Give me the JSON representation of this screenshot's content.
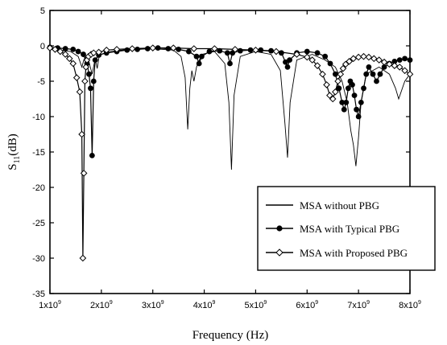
{
  "chart_data": {
    "type": "line",
    "xlabel": "Frequency (Hz)",
    "ylabel": "S11(dB)",
    "ylabel_main": "S",
    "ylabel_sub": "11",
    "ylabel_unit": "(dB)",
    "xlim": [
      1000000000,
      8000000000
    ],
    "ylim": [
      -35,
      5
    ],
    "x_ticks": [
      {
        "mant": "1x10",
        "exp": "9"
      },
      {
        "mant": "2x10",
        "exp": "9"
      },
      {
        "mant": "3x10",
        "exp": "9"
      },
      {
        "mant": "4x10",
        "exp": "9"
      },
      {
        "mant": "5x10",
        "exp": "9"
      },
      {
        "mant": "6x10",
        "exp": "9"
      },
      {
        "mant": "7x10",
        "exp": "9"
      },
      {
        "mant": "8x10",
        "exp": "9"
      }
    ],
    "y_ticks": [
      "5",
      "0",
      "-5",
      "-10",
      "-15",
      "-20",
      "-25",
      "-30",
      "-35"
    ],
    "legend_position": "bottom-right",
    "series": [
      {
        "name": "MSA without PBG",
        "marker": "none",
        "x": [
          1.0,
          1.2,
          1.4,
          1.55,
          1.62,
          1.66,
          1.7,
          1.75,
          1.82,
          1.88,
          1.92,
          1.96,
          2.1,
          2.5,
          3.0,
          3.4,
          3.55,
          3.63,
          3.68,
          3.72,
          3.76,
          3.8,
          3.85,
          3.95,
          4.2,
          4.4,
          4.48,
          4.53,
          4.58,
          4.7,
          5.0,
          5.3,
          5.48,
          5.57,
          5.62,
          5.67,
          5.8,
          6.1,
          6.35,
          6.55,
          6.68,
          6.78,
          6.85,
          6.9,
          6.95,
          7.0,
          7.05,
          7.15,
          7.4,
          7.6,
          7.72,
          7.78,
          7.9,
          8.0
        ],
        "y": [
          -0.5,
          -0.6,
          -0.8,
          -1.5,
          -3.0,
          -2.0,
          -1.5,
          -2.0,
          -4.0,
          -1.8,
          -3.2,
          -1.3,
          -0.9,
          -0.5,
          -0.4,
          -0.6,
          -1.5,
          -4.5,
          -11.8,
          -6.0,
          -3.5,
          -5.0,
          -3.0,
          -1.2,
          -0.8,
          -2.5,
          -8.0,
          -17.5,
          -7.0,
          -1.5,
          -0.8,
          -1.2,
          -3.5,
          -11.0,
          -15.8,
          -8.0,
          -2.0,
          -1.2,
          -2.0,
          -3.0,
          -5.0,
          -8.0,
          -12.0,
          -14.0,
          -17.0,
          -13.0,
          -8.0,
          -4.0,
          -3.0,
          -4.0,
          -6.0,
          -7.5,
          -5.0,
          -4.0
        ]
      },
      {
        "name": "MSA with Typical PBG",
        "marker": "filled-circle",
        "x": [
          1.0,
          1.15,
          1.3,
          1.45,
          1.55,
          1.65,
          1.72,
          1.76,
          1.79,
          1.82,
          1.85,
          1.88,
          1.95,
          2.1,
          2.3,
          2.5,
          2.7,
          2.9,
          3.1,
          3.3,
          3.5,
          3.7,
          3.85,
          3.9,
          3.95,
          4.1,
          4.3,
          4.45,
          4.5,
          4.55,
          4.7,
          4.9,
          5.1,
          5.3,
          5.5,
          5.58,
          5.62,
          5.66,
          5.8,
          6.0,
          6.2,
          6.35,
          6.45,
          6.55,
          6.62,
          6.68,
          6.72,
          6.76,
          6.8,
          6.84,
          6.88,
          6.92,
          6.96,
          7.0,
          7.05,
          7.1,
          7.15,
          7.2,
          7.28,
          7.35,
          7.42,
          7.5,
          7.6,
          7.7,
          7.8,
          7.9,
          8.0
        ],
        "y": [
          -0.2,
          -0.3,
          -0.4,
          -0.5,
          -0.8,
          -1.2,
          -2.5,
          -4.0,
          -6.0,
          -15.5,
          -5.0,
          -2.0,
          -1.3,
          -1.0,
          -0.8,
          -0.6,
          -0.5,
          -0.4,
          -0.3,
          -0.4,
          -0.5,
          -0.8,
          -1.5,
          -2.5,
          -1.5,
          -0.8,
          -0.7,
          -1.0,
          -2.5,
          -1.0,
          -0.7,
          -0.6,
          -0.6,
          -0.7,
          -1.0,
          -2.3,
          -3.0,
          -2.0,
          -1.0,
          -0.8,
          -1.0,
          -1.5,
          -2.5,
          -4.0,
          -6.0,
          -8.0,
          -9.0,
          -8.0,
          -6.0,
          -5.0,
          -5.5,
          -7.0,
          -9.0,
          -10.0,
          -8.0,
          -6.0,
          -4.0,
          -3.0,
          -4.0,
          -5.0,
          -4.0,
          -3.0,
          -2.5,
          -2.2,
          -2.0,
          -1.8,
          -2.0
        ]
      },
      {
        "name": "MSA with Proposed PBG",
        "marker": "open-diamond",
        "x": [
          1.0,
          1.1,
          1.2,
          1.3,
          1.38,
          1.45,
          1.52,
          1.58,
          1.62,
          1.64,
          1.66,
          1.68,
          1.7,
          1.72,
          1.75,
          1.8,
          1.85,
          1.95,
          2.1,
          2.3,
          2.6,
          3.0,
          3.4,
          3.8,
          4.2,
          4.6,
          5.0,
          5.4,
          5.8,
          6.0,
          6.1,
          6.2,
          6.3,
          6.38,
          6.44,
          6.5,
          6.55,
          6.6,
          6.65,
          6.7,
          6.75,
          6.82,
          6.9,
          7.0,
          7.1,
          7.2,
          7.3,
          7.4,
          7.5,
          7.6,
          7.7,
          7.8,
          7.9,
          8.0
        ],
        "y": [
          -0.3,
          -0.5,
          -0.8,
          -1.2,
          -1.8,
          -2.5,
          -4.5,
          -6.5,
          -12.5,
          -30.0,
          -18.0,
          -5.0,
          -3.0,
          -2.0,
          -1.5,
          -1.2,
          -1.0,
          -0.9,
          -0.6,
          -0.5,
          -0.4,
          -0.3,
          -0.3,
          -0.4,
          -0.4,
          -0.5,
          -0.6,
          -0.8,
          -1.2,
          -1.6,
          -2.0,
          -2.8,
          -4.0,
          -5.5,
          -7.0,
          -7.5,
          -6.5,
          -5.0,
          -4.0,
          -3.2,
          -2.6,
          -2.2,
          -1.8,
          -1.6,
          -1.5,
          -1.6,
          -1.8,
          -2.0,
          -2.3,
          -2.6,
          -2.8,
          -3.0,
          -3.5,
          -4.0
        ]
      }
    ]
  }
}
